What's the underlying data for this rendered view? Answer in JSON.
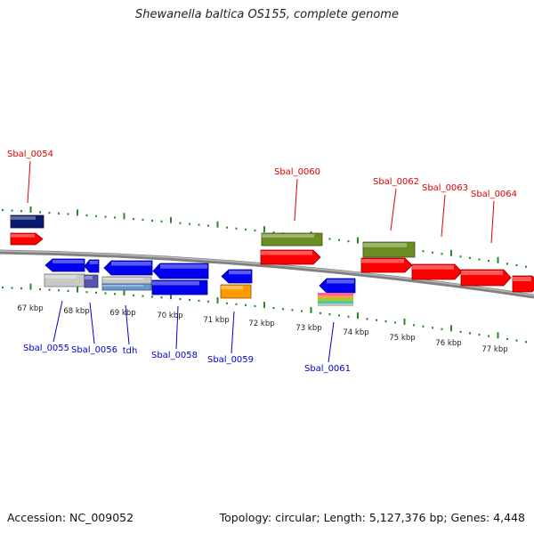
{
  "title": "Shewanella baltica OS155, complete genome",
  "footer": {
    "accession": "Accession: NC_009052",
    "topology": "Topology: circular; Length: 5,127,376 bp; Genes: 4,448"
  },
  "colors": {
    "forward_label": "#e00000",
    "reverse_label": "#0000cc",
    "backbone": "#808080",
    "ticks": "#2a8a2a",
    "gene_red": "#ff0000",
    "gene_blue": "#0000ee",
    "gene_olive": "#6b8e23",
    "gene_navy": "#0a1a6e",
    "gene_orange": "#ff9900",
    "gene_gray": "#c8c8c8",
    "gene_purple": "#5555aa",
    "gene_steel": "#6699cc"
  },
  "scale_labels": [
    "67 kbp",
    "68 kbp",
    "69 kbp",
    "70 kbp",
    "71 kbp",
    "72 kbp",
    "73 kbp",
    "74 kbp",
    "75 kbp",
    "76 kbp",
    "77 kbp"
  ],
  "forward_genes": [
    "Sbal_0054",
    "Sbal_0060",
    "Sbal_0062",
    "Sbal_0063",
    "Sbal_0064"
  ],
  "reverse_genes": [
    "Sbal_0055",
    "Sbal_0056",
    "tdh",
    "Sbal_0058",
    "Sbal_0059",
    "Sbal_0061"
  ]
}
